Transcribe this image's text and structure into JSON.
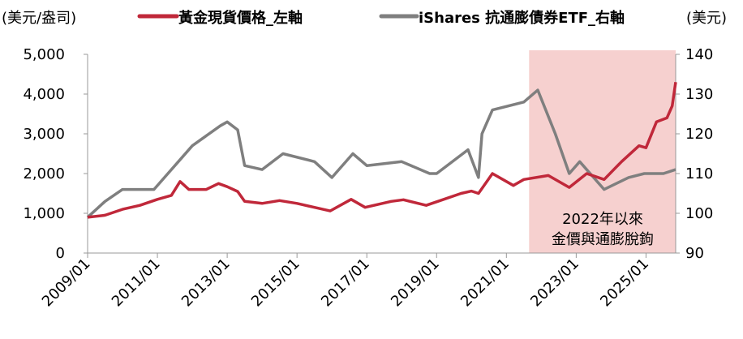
{
  "chart_data": {
    "type": "line",
    "left_unit": "(美元/盎司)",
    "right_unit": "(美元)",
    "legend": [
      "黃金現貨價格_左軸",
      "iShares 抗通膨債券ETF_右軸"
    ],
    "left_axis": {
      "range": [
        0,
        5000
      ],
      "ticks": [
        "0",
        "1,000",
        "2,000",
        "3,000",
        "4,000",
        "5,000"
      ],
      "tick_values": [
        0,
        1000,
        2000,
        3000,
        4000,
        5000
      ]
    },
    "right_axis": {
      "range": [
        90,
        140
      ],
      "ticks": [
        "90",
        "100",
        "110",
        "120",
        "130",
        "140"
      ],
      "tick_values": [
        90,
        100,
        110,
        120,
        130,
        140
      ]
    },
    "x_axis": {
      "range": [
        2009.0,
        2025.85
      ],
      "ticks": [
        "2009/01",
        "2011/01",
        "2013/01",
        "2015/01",
        "2017/01",
        "2019/01",
        "2021/01",
        "2023/01",
        "2025/01"
      ],
      "tick_values": [
        2009,
        2011,
        2013,
        2015,
        2017,
        2019,
        2021,
        2023,
        2025
      ]
    },
    "highlight": {
      "from": 2021.65,
      "to": 2025.85,
      "label_line1": "2022年以來",
      "label_line2": "金價與通膨脫鉤",
      "color": "#f6d0cf"
    },
    "series": [
      {
        "name": "黃金現貨價格_左軸",
        "axis": "left",
        "color": "#c0283a",
        "x": [
          2009.0,
          2009.5,
          2010.0,
          2010.5,
          2011.0,
          2011.4,
          2011.65,
          2011.9,
          2012.4,
          2012.75,
          2013.0,
          2013.3,
          2013.5,
          2014.0,
          2014.5,
          2015.0,
          2015.5,
          2015.95,
          2016.55,
          2016.95,
          2017.7,
          2018.05,
          2018.7,
          2019.0,
          2019.7,
          2020.0,
          2020.2,
          2020.6,
          2021.2,
          2021.5,
          2022.2,
          2022.8,
          2023.3,
          2023.8,
          2024.3,
          2024.8,
          2025.0,
          2025.3,
          2025.6,
          2025.75,
          2025.85
        ],
        "y": [
          900,
          950,
          1100,
          1200,
          1350,
          1450,
          1800,
          1600,
          1600,
          1750,
          1670,
          1550,
          1300,
          1250,
          1320,
          1250,
          1150,
          1060,
          1350,
          1150,
          1300,
          1340,
          1200,
          1290,
          1500,
          1560,
          1500,
          2000,
          1700,
          1850,
          1950,
          1650,
          2000,
          1850,
          2300,
          2700,
          2650,
          3300,
          3400,
          3700,
          4300
        ]
      },
      {
        "name": "iShares 抗通膨債券ETF_右軸",
        "axis": "right",
        "color": "#7f7f7f",
        "x": [
          2009.0,
          2009.5,
          2010.0,
          2010.9,
          2011.3,
          2011.6,
          2012.0,
          2012.8,
          2013.0,
          2013.3,
          2013.5,
          2014.0,
          2014.6,
          2015.5,
          2016.0,
          2016.6,
          2017.0,
          2018.0,
          2018.8,
          2019.0,
          2019.9,
          2020.2,
          2020.3,
          2020.6,
          2021.5,
          2021.9,
          2022.4,
          2022.8,
          2023.1,
          2023.8,
          2024.5,
          2024.95,
          2025.5,
          2025.85
        ],
        "y": [
          99,
          103,
          106,
          106,
          110,
          113,
          117,
          122,
          123,
          121,
          112,
          111,
          115,
          113,
          109,
          115,
          112,
          113,
          110,
          110,
          116,
          109,
          120,
          126,
          128,
          131,
          120,
          110,
          113,
          106,
          109,
          110,
          110,
          111
        ]
      }
    ]
  }
}
